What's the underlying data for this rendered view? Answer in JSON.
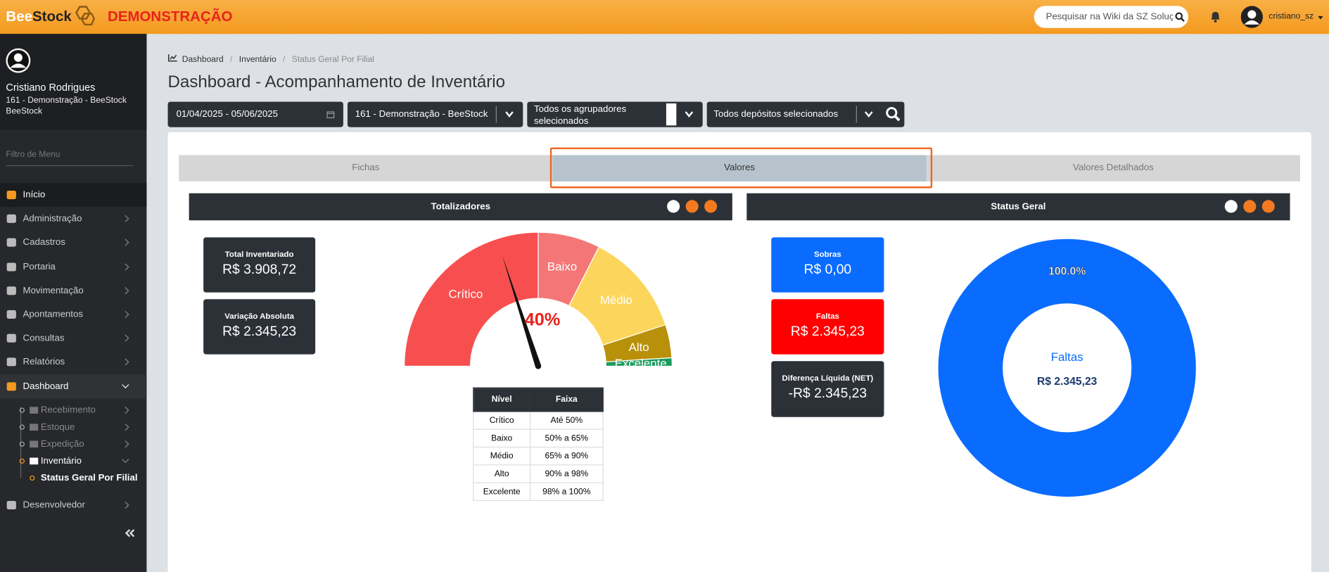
{
  "header": {
    "logo_bee": "Bee",
    "logo_stock": "Stock",
    "environment": "DEMONSTRAÇÃO",
    "search_placeholder": "Pesquisar na Wiki da SZ Soluções",
    "username": "cristiano_sz"
  },
  "sidebar": {
    "user_name": "Cristiano Rodrigues",
    "user_org": "161 - Demonstração - BeeStock BeeStock",
    "filter_placeholder": "Filtro de Menu",
    "menu": [
      "Início",
      "Administração",
      "Cadastros",
      "Portaria",
      "Movimentação",
      "Apontamentos",
      "Consultas",
      "Relatórios",
      "Dashboard"
    ],
    "dashboard_submenu": [
      "Recebimento",
      "Estoque",
      "Expedição",
      "Inventário"
    ],
    "inventario_submenu": [
      "Status Geral Por Filial"
    ],
    "footer_menu": [
      "Desenvolvedor"
    ]
  },
  "breadcrumb": [
    "Dashboard",
    "Inventário",
    "Status Geral Por Filial"
  ],
  "page_title": "Dashboard - Acompanhamento de Inventário",
  "filters": {
    "date_range": "01/04/2025 - 05/06/2025",
    "company": "161 - Demonstração - BeeStock",
    "groupers": "Todos os agrupadores selecionados",
    "warehouses": "Todos depósitos selecionados"
  },
  "tabs": [
    "Fichas",
    "Valores",
    "Valores Detalhados"
  ],
  "totalizadores": {
    "title": "Totalizadores",
    "cards": [
      {
        "label": "Total Inventariado",
        "value": "R$ 3.908,72"
      },
      {
        "label": "Variação Absoluta",
        "value": "R$ 2.345,23"
      }
    ],
    "gauge": {
      "value": 40,
      "value_label": "40%",
      "segments": [
        {
          "name": "Crítico",
          "from": 0,
          "to": 50,
          "color": "#f74f4f"
        },
        {
          "name": "Baixo",
          "from": 50,
          "to": 65,
          "color": "#f57676"
        },
        {
          "name": "Médio",
          "from": 65,
          "to": 90,
          "color": "#fcd65c"
        },
        {
          "name": "Alto",
          "from": 90,
          "to": 98,
          "color": "#b8900a"
        },
        {
          "name": "Excelente",
          "from": 98,
          "to": 100,
          "color": "#1a9b5e"
        }
      ]
    },
    "table": {
      "columns": [
        "Nível",
        "Faixa"
      ],
      "rows": [
        [
          "Crítico",
          "Até 50%"
        ],
        [
          "Baixo",
          "50% a 65%"
        ],
        [
          "Médio",
          "65% a 90%"
        ],
        [
          "Alto",
          "90% a 98%"
        ],
        [
          "Excelente",
          "98% a 100%"
        ]
      ]
    }
  },
  "status_geral": {
    "title": "Status Geral",
    "cards": [
      {
        "label": "Sobras",
        "value": "R$ 0,00",
        "color": "#0a6cff"
      },
      {
        "label": "Faltas",
        "value": "R$ 2.345,23",
        "color": "#ff0000"
      },
      {
        "label": "Diferença Líquida (NET)",
        "value": "-R$ 2.345,23",
        "color": "#2c3138"
      }
    ],
    "donut": {
      "center_value": "R$ 2.345,23",
      "slices": [
        {
          "name": "Faltas",
          "value": 100,
          "value_label": "100.0%",
          "color": "#0a6cff"
        }
      ]
    }
  }
}
